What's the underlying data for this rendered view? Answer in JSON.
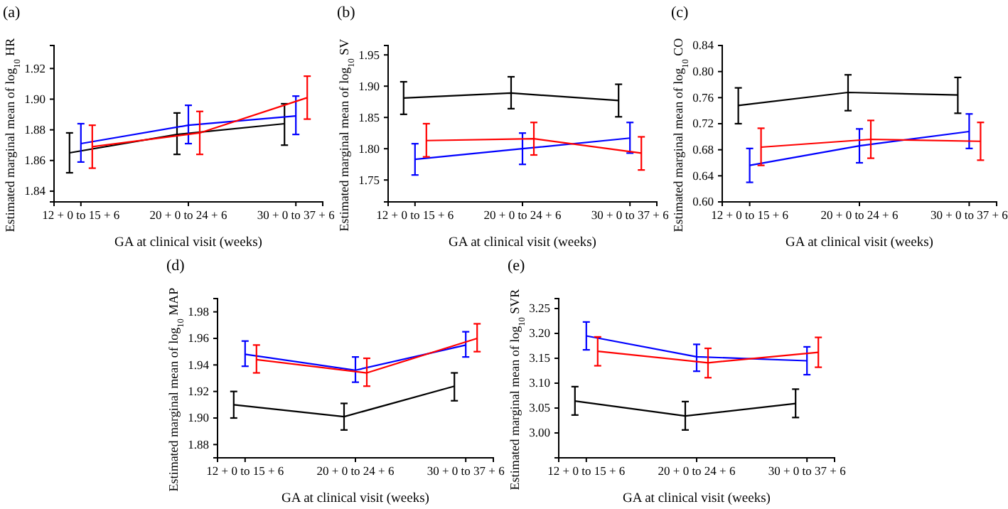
{
  "chart_data": [
    {
      "type": "line",
      "title": "(a)",
      "xlabel": "GA at clinical visit (weeks)",
      "ylabel": "Estimated marginal mean of log$_{10}$ HR",
      "categories": [
        "12 + 0 to 15 + 6",
        "20 + 0 to 24 + 6",
        "30 + 0 to 37 + 6"
      ],
      "ylim": [
        1.833,
        1.935
      ],
      "yticks": [
        {
          "value": 1.84,
          "label": "1.84"
        },
        {
          "value": 1.86,
          "label": "1.86"
        },
        {
          "value": 1.88,
          "label": "1.88"
        },
        {
          "value": 1.9,
          "label": "1.90"
        },
        {
          "value": 1.92,
          "label": "1.92"
        }
      ],
      "line_style": "solid",
      "series": [
        {
          "color": "#000000",
          "values": [
            1.865,
            1.877,
            1.884
          ],
          "errors": [
            [
              1.852,
              1.878
            ],
            [
              1.864,
              1.891
            ],
            [
              1.87,
              1.897
            ]
          ]
        },
        {
          "color": "#0000ff",
          "values": [
            1.871,
            1.883,
            1.889
          ],
          "errors": [
            [
              1.859,
              1.884
            ],
            [
              1.871,
              1.896
            ],
            [
              1.877,
              1.902
            ]
          ]
        },
        {
          "color": "#ff0000",
          "values": [
            1.869,
            1.878,
            1.901
          ],
          "errors": [
            [
              1.855,
              1.883
            ],
            [
              1.864,
              1.892
            ],
            [
              1.887,
              1.915
            ]
          ]
        }
      ]
    },
    {
      "type": "line",
      "title": "(b)",
      "xlabel": "GA at clinical visit (weeks)",
      "ylabel": "Estimated marginal mean of log$_{10}$ SV",
      "categories": [
        "12 + 0 to 15 + 6",
        "20 + 0 to 24 + 6",
        "30 + 0 to 37 + 6"
      ],
      "ylim": [
        1.715,
        1.965
      ],
      "yticks": [
        {
          "value": 1.75,
          "label": "1.75"
        },
        {
          "value": 1.8,
          "label": "1.80"
        },
        {
          "value": 1.85,
          "label": "1.85"
        },
        {
          "value": 1.9,
          "label": "1.90"
        },
        {
          "value": 1.95,
          "label": "1.95"
        }
      ],
      "line_style": "solid",
      "series": [
        {
          "color": "#000000",
          "values": [
            1.881,
            1.889,
            1.877
          ],
          "errors": [
            [
              1.855,
              1.907
            ],
            [
              1.864,
              1.915
            ],
            [
              1.851,
              1.903
            ]
          ]
        },
        {
          "color": "#0000ff",
          "values": [
            1.783,
            1.8,
            1.817
          ],
          "errors": [
            [
              1.758,
              1.808
            ],
            [
              1.775,
              1.825
            ],
            [
              1.793,
              1.842
            ]
          ]
        },
        {
          "color": "#ff0000",
          "values": [
            1.813,
            1.816,
            1.793
          ],
          "errors": [
            [
              1.787,
              1.84
            ],
            [
              1.79,
              1.842
            ],
            [
              1.766,
              1.819
            ]
          ]
        }
      ]
    },
    {
      "type": "line",
      "title": "(c)",
      "xlabel": "GA at clinical visit (weeks)",
      "ylabel": "Estimated marginal mean of log$_{10}$ CO",
      "categories": [
        "12 + 0 to 15 + 6",
        "20 + 0 to 24 + 6",
        "30 + 0 to 37 + 6"
      ],
      "ylim": [
        0.6,
        0.84
      ],
      "yticks": [
        {
          "value": 0.6,
          "label": "0.60"
        },
        {
          "value": 0.64,
          "label": "0.64"
        },
        {
          "value": 0.68,
          "label": "0.68"
        },
        {
          "value": 0.72,
          "label": "0.72"
        },
        {
          "value": 0.76,
          "label": "0.76"
        },
        {
          "value": 0.8,
          "label": "0.80"
        },
        {
          "value": 0.84,
          "label": "0.84"
        }
      ],
      "line_style": "solid",
      "series": [
        {
          "color": "#000000",
          "values": [
            0.748,
            0.768,
            0.764
          ],
          "errors": [
            [
              0.72,
              0.775
            ],
            [
              0.74,
              0.795
            ],
            [
              0.736,
              0.791
            ]
          ]
        },
        {
          "color": "#0000ff",
          "values": [
            0.656,
            0.686,
            0.708
          ],
          "errors": [
            [
              0.63,
              0.682
            ],
            [
              0.66,
              0.712
            ],
            [
              0.682,
              0.735
            ]
          ]
        },
        {
          "color": "#ff0000",
          "values": [
            0.684,
            0.696,
            0.693
          ],
          "errors": [
            [
              0.656,
              0.713
            ],
            [
              0.667,
              0.725
            ],
            [
              0.664,
              0.722
            ]
          ]
        }
      ]
    },
    {
      "type": "line",
      "title": "(d)",
      "xlabel": "GA at clinical visit (weeks)",
      "ylabel": "Estimated marginal mean of log$_{10}$ MAP",
      "categories": [
        "12 + 0 to 15 + 6",
        "20 + 0 to 24 + 6",
        "30 + 0 to 37 + 6"
      ],
      "ylim": [
        1.87,
        1.99
      ],
      "yticks": [
        {
          "value": 1.88,
          "label": "1.88"
        },
        {
          "value": 1.9,
          "label": "1.90"
        },
        {
          "value": 1.92,
          "label": "1.92"
        },
        {
          "value": 1.94,
          "label": "1.94"
        },
        {
          "value": 1.96,
          "label": "1.96"
        },
        {
          "value": 1.98,
          "label": "1.98"
        }
      ],
      "line_style": "solid",
      "series": [
        {
          "color": "#000000",
          "values": [
            1.91,
            1.901,
            1.924
          ],
          "errors": [
            [
              1.9,
              1.92
            ],
            [
              1.891,
              1.911
            ],
            [
              1.913,
              1.934
            ]
          ]
        },
        {
          "color": "#0000ff",
          "values": [
            1.948,
            1.936,
            1.955
          ],
          "errors": [
            [
              1.939,
              1.958
            ],
            [
              1.927,
              1.946
            ],
            [
              1.946,
              1.965
            ]
          ]
        },
        {
          "color": "#ff0000",
          "values": [
            1.944,
            1.934,
            1.96
          ],
          "errors": [
            [
              1.934,
              1.955
            ],
            [
              1.924,
              1.945
            ],
            [
              1.95,
              1.971
            ]
          ]
        }
      ]
    },
    {
      "type": "line",
      "title": "(e)",
      "xlabel": "GA at clinical visit (weeks)",
      "ylabel": "Estimated marginal mean of log$_{10}$ SVR",
      "categories": [
        "12 + 0 to 15 + 6",
        "20 + 0 to 24 + 6",
        "30 + 0 to 37 + 6"
      ],
      "ylim": [
        2.95,
        3.27
      ],
      "yticks": [
        {
          "value": 3.0,
          "label": "3.00"
        },
        {
          "value": 3.05,
          "label": "3.05"
        },
        {
          "value": 3.1,
          "label": "3.10"
        },
        {
          "value": 3.15,
          "label": "3.15"
        },
        {
          "value": 3.2,
          "label": "3.20"
        },
        {
          "value": 3.25,
          "label": "3.25"
        }
      ],
      "line_style": "solid",
      "series": [
        {
          "color": "#000000",
          "values": [
            3.064,
            3.034,
            3.059
          ],
          "errors": [
            [
              3.036,
              3.093
            ],
            [
              3.006,
              3.063
            ],
            [
              3.031,
              3.088
            ]
          ]
        },
        {
          "color": "#0000ff",
          "values": [
            3.195,
            3.153,
            3.145
          ],
          "errors": [
            [
              3.167,
              3.223
            ],
            [
              3.124,
              3.178
            ],
            [
              3.117,
              3.173
            ]
          ]
        },
        {
          "color": "#ff0000",
          "values": [
            3.164,
            3.141,
            3.162
          ],
          "errors": [
            [
              3.135,
              3.193
            ],
            [
              3.111,
              3.17
            ],
            [
              3.132,
              3.192
            ]
          ]
        }
      ]
    }
  ]
}
